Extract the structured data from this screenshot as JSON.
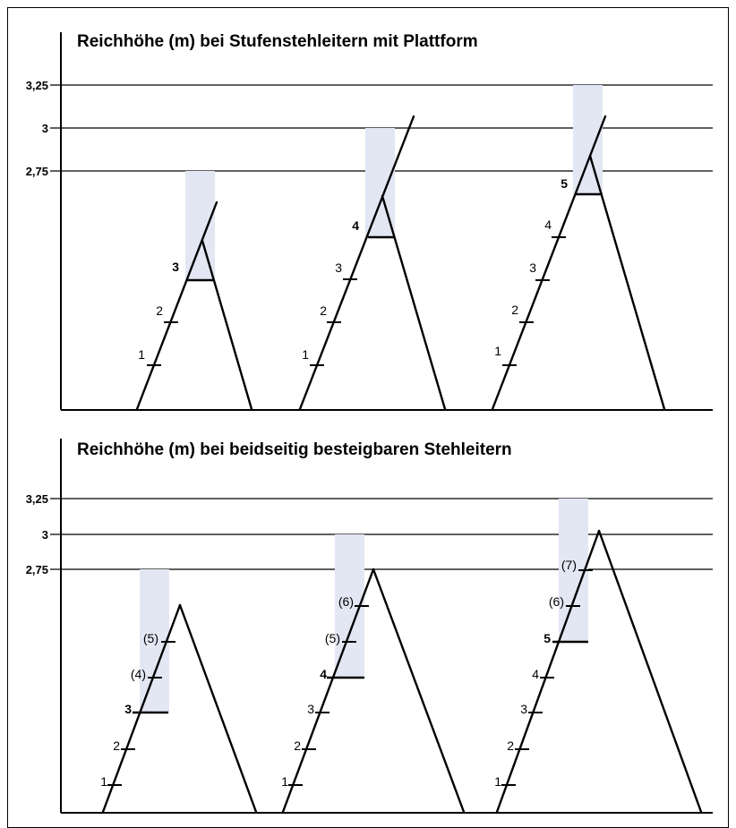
{
  "panels": [
    {
      "id": "stufenstehleiter-plattform",
      "title": "Reichhöhe (m) bei Stufenstehleitern mit Plattform",
      "y_labels": [
        "3,25",
        "3",
        "2,75"
      ],
      "ladders": [
        {
          "steps": [
            {
              "label": "1",
              "bold": false
            },
            {
              "label": "2",
              "bold": false
            },
            {
              "label": "3",
              "bold": true
            }
          ]
        },
        {
          "steps": [
            {
              "label": "1",
              "bold": false
            },
            {
              "label": "2",
              "bold": false
            },
            {
              "label": "3",
              "bold": false
            },
            {
              "label": "4",
              "bold": true
            }
          ]
        },
        {
          "steps": [
            {
              "label": "1",
              "bold": false
            },
            {
              "label": "2",
              "bold": false
            },
            {
              "label": "3",
              "bold": false
            },
            {
              "label": "4",
              "bold": false
            },
            {
              "label": "5",
              "bold": true
            }
          ]
        }
      ]
    },
    {
      "id": "beidseitig-stehleiter",
      "title": "Reichhöhe (m) bei beidseitig besteigbaren Stehleitern",
      "y_labels": [
        "3,25",
        "3",
        "2,75"
      ],
      "ladders": [
        {
          "steps": [
            {
              "label": "1",
              "bold": false
            },
            {
              "label": "2",
              "bold": false
            },
            {
              "label": "3",
              "bold": true
            },
            {
              "label": "(4)",
              "bold": false
            },
            {
              "label": "(5)",
              "bold": false
            }
          ]
        },
        {
          "steps": [
            {
              "label": "1",
              "bold": false
            },
            {
              "label": "2",
              "bold": false
            },
            {
              "label": "3",
              "bold": false
            },
            {
              "label": "4",
              "bold": true
            },
            {
              "label": "(5)",
              "bold": false
            },
            {
              "label": "(6)",
              "bold": false
            }
          ]
        },
        {
          "steps": [
            {
              "label": "1",
              "bold": false
            },
            {
              "label": "2",
              "bold": false
            },
            {
              "label": "3",
              "bold": false
            },
            {
              "label": "4",
              "bold": false
            },
            {
              "label": "5",
              "bold": true
            },
            {
              "label": "(6)",
              "bold": false
            },
            {
              "label": "(7)",
              "bold": false
            }
          ]
        }
      ]
    }
  ],
  "colors": {
    "reach_band": "#e3e6f3",
    "lines": "#000000"
  }
}
